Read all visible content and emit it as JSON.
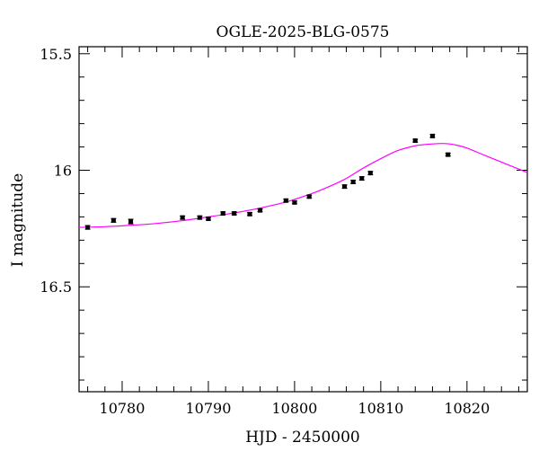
{
  "chart_data": {
    "type": "scatter",
    "title": "OGLE-2025-BLG-0575",
    "xlabel": "HJD - 2450000",
    "ylabel": "I magnitude",
    "xlim": [
      10775,
      10827
    ],
    "ylim": [
      16.95,
      15.47
    ],
    "y_inverted": true,
    "x_ticks": [
      10780,
      10790,
      10800,
      10810,
      10820
    ],
    "y_ticks": [
      15.5,
      16,
      16.5
    ],
    "y_tick_labels": [
      "15.5",
      "16",
      "16.5"
    ],
    "grid": false,
    "points": [
      {
        "x": 10776.0,
        "y": 16.245,
        "err": 0.008
      },
      {
        "x": 10779.0,
        "y": 16.215,
        "err": 0.008
      },
      {
        "x": 10781.0,
        "y": 16.22,
        "err": 0.01
      },
      {
        "x": 10787.0,
        "y": 16.203,
        "err": 0.007
      },
      {
        "x": 10789.0,
        "y": 16.203,
        "err": 0.007
      },
      {
        "x": 10790.0,
        "y": 16.208,
        "err": 0.006
      },
      {
        "x": 10791.7,
        "y": 16.185,
        "err": 0.006
      },
      {
        "x": 10793.0,
        "y": 16.185,
        "err": 0.006
      },
      {
        "x": 10794.8,
        "y": 16.188,
        "err": 0.006
      },
      {
        "x": 10796.0,
        "y": 16.172,
        "err": 0.006
      },
      {
        "x": 10799.0,
        "y": 16.13,
        "err": 0.006
      },
      {
        "x": 10800.0,
        "y": 16.138,
        "err": 0.006
      },
      {
        "x": 10801.7,
        "y": 16.113,
        "err": 0.006
      },
      {
        "x": 10805.8,
        "y": 16.07,
        "err": 0.007
      },
      {
        "x": 10806.8,
        "y": 16.05,
        "err": 0.007
      },
      {
        "x": 10807.8,
        "y": 16.035,
        "err": 0.007
      },
      {
        "x": 10808.8,
        "y": 16.012,
        "err": 0.007
      },
      {
        "x": 10814.0,
        "y": 15.873,
        "err": 0.006
      },
      {
        "x": 10816.0,
        "y": 15.853,
        "err": 0.006
      },
      {
        "x": 10817.8,
        "y": 15.933,
        "err": 0.006
      }
    ],
    "model": {
      "type": "line",
      "color": "#ff00ff",
      "x": [
        10775,
        10778,
        10781,
        10784,
        10787,
        10790,
        10793,
        10796,
        10799,
        10802,
        10804,
        10806,
        10808,
        10810,
        10812,
        10814,
        10815,
        10816,
        10817,
        10818,
        10819,
        10820,
        10822,
        10824,
        10826,
        10827
      ],
      "y": [
        16.245,
        16.242,
        16.236,
        16.228,
        16.216,
        16.2,
        16.183,
        16.162,
        16.136,
        16.1,
        16.07,
        16.035,
        15.99,
        15.95,
        15.915,
        15.895,
        15.89,
        15.887,
        15.885,
        15.887,
        15.894,
        15.905,
        15.935,
        15.965,
        15.995,
        16.01
      ]
    }
  }
}
